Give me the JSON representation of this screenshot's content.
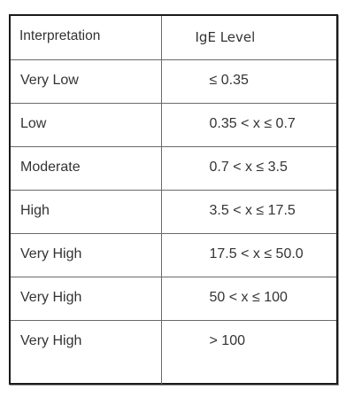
{
  "table": {
    "headers": [
      "Interpretation",
      "IgE Level"
    ],
    "rows": [
      [
        "Very Low",
        "≤ 0.35"
      ],
      [
        "Low",
        "0.35 < x ≤ 0.7"
      ],
      [
        "Moderate",
        "0.7 < x ≤ 3.5"
      ],
      [
        "High",
        "3.5 < x ≤ 17.5"
      ],
      [
        "Very High",
        "17.5 < x ≤ 50.0"
      ],
      [
        "Very High",
        "50 < x ≤ 100"
      ],
      [
        "Very High",
        "> 100"
      ]
    ]
  }
}
